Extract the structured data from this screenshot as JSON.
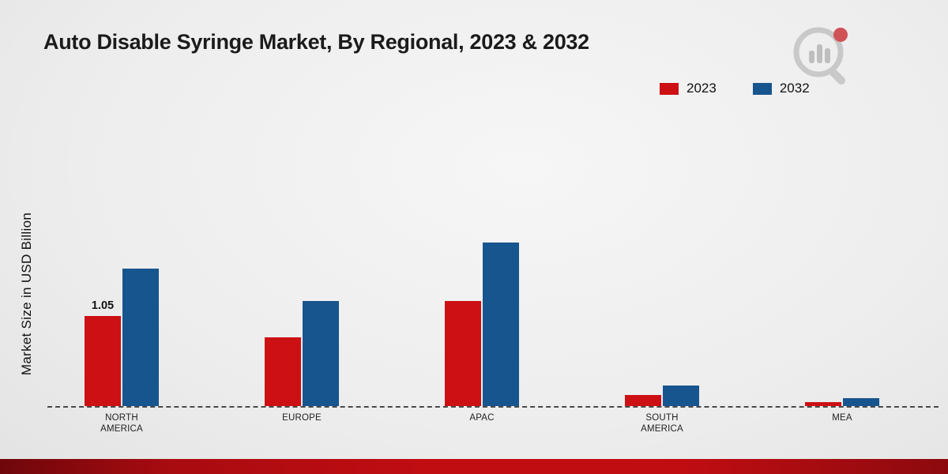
{
  "title": "Auto Disable Syringe Market, By Regional, 2023 & 2032",
  "ylabel": "Market Size in USD Billion",
  "legend": [
    {
      "label": "2023",
      "color": "#cc1014"
    },
    {
      "label": "2032",
      "color": "#17558e"
    }
  ],
  "chart_data": {
    "type": "bar",
    "title": "Auto Disable Syringe Market, By Regional, 2023 & 2032",
    "ylabel": "Market Size in USD Billion",
    "xlabel": "",
    "categories": [
      "NORTH AMERICA",
      "EUROPE",
      "APAC",
      "SOUTH AMERICA",
      "MEA"
    ],
    "series": [
      {
        "name": "2023",
        "color": "#cc1014",
        "values": [
          1.05,
          0.8,
          1.22,
          0.13,
          0.05
        ]
      },
      {
        "name": "2032",
        "color": "#17558e",
        "values": [
          1.6,
          1.22,
          1.9,
          0.24,
          0.09
        ]
      }
    ],
    "annotations": [
      {
        "series_index": 0,
        "category_index": 0,
        "text": "1.05"
      }
    ],
    "ylim": [
      0,
      2.0
    ],
    "grid": false,
    "legend_position": "top-right",
    "baseline_style": "dashed"
  }
}
